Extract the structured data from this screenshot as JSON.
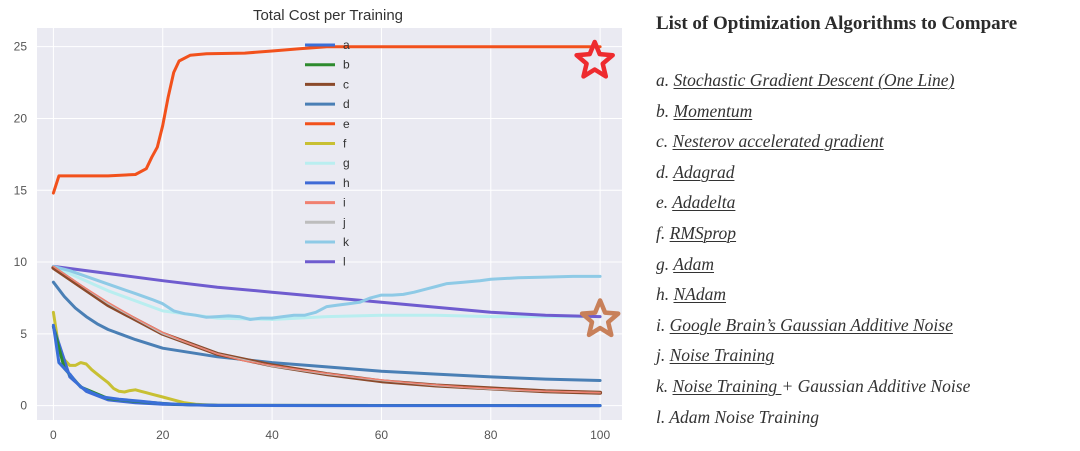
{
  "chart_data": {
    "type": "line",
    "title": "Total Cost per Training",
    "xlabel": "",
    "ylabel": "",
    "xlim": [
      -3,
      104
    ],
    "ylim": [
      -1,
      26.3
    ],
    "xticks": [
      0,
      20,
      40,
      60,
      80,
      100
    ],
    "yticks": [
      0,
      5,
      10,
      15,
      20,
      25
    ],
    "grid": true,
    "legend_position": "top-center",
    "series": [
      {
        "name": "a",
        "color": "#3a6fd8",
        "points": [
          [
            0,
            5.6
          ],
          [
            1,
            3.0
          ],
          [
            2,
            2.6
          ],
          [
            3,
            2.2
          ],
          [
            4,
            1.7
          ],
          [
            5,
            1.3
          ],
          [
            7,
            0.9
          ],
          [
            9,
            0.6
          ],
          [
            12,
            0.45
          ],
          [
            16,
            0.3
          ],
          [
            20,
            0.15
          ],
          [
            25,
            0.05
          ],
          [
            30,
            0.02
          ],
          [
            50,
            0.0
          ],
          [
            100,
            0.0
          ]
        ]
      },
      {
        "name": "b",
        "color": "#2e8b2e",
        "points": [
          [
            0,
            5.5
          ],
          [
            2,
            2.6
          ],
          [
            5,
            1.3
          ],
          [
            10,
            0.5
          ],
          [
            15,
            0.3
          ],
          [
            22,
            0.1
          ],
          [
            30,
            0.02
          ],
          [
            100,
            0.0
          ]
        ]
      },
      {
        "name": "c",
        "color": "#8b4a2b",
        "points": [
          [
            0,
            9.6
          ],
          [
            10,
            7.0
          ],
          [
            20,
            5.0
          ],
          [
            30,
            3.6
          ],
          [
            40,
            2.8
          ],
          [
            50,
            2.2
          ],
          [
            60,
            1.7
          ],
          [
            70,
            1.4
          ],
          [
            80,
            1.2
          ],
          [
            90,
            1.0
          ],
          [
            100,
            0.9
          ]
        ]
      },
      {
        "name": "d",
        "color": "#4a7fb5",
        "points": [
          [
            0,
            8.6
          ],
          [
            2,
            7.6
          ],
          [
            4,
            6.8
          ],
          [
            6,
            6.2
          ],
          [
            8,
            5.7
          ],
          [
            10,
            5.3
          ],
          [
            15,
            4.6
          ],
          [
            20,
            4.0
          ],
          [
            30,
            3.4
          ],
          [
            40,
            3.0
          ],
          [
            50,
            2.7
          ],
          [
            60,
            2.4
          ],
          [
            70,
            2.2
          ],
          [
            80,
            2.0
          ],
          [
            90,
            1.85
          ],
          [
            100,
            1.75
          ]
        ]
      },
      {
        "name": "e",
        "color": "#f2511c",
        "points": [
          [
            0,
            14.8
          ],
          [
            1,
            16.0
          ],
          [
            5,
            16.0
          ],
          [
            10,
            16.0
          ],
          [
            15,
            16.1
          ],
          [
            17,
            16.5
          ],
          [
            18,
            17.3
          ],
          [
            19,
            18.0
          ],
          [
            20,
            19.5
          ],
          [
            21,
            21.5
          ],
          [
            22,
            23.2
          ],
          [
            23,
            24.0
          ],
          [
            25,
            24.4
          ],
          [
            28,
            24.5
          ],
          [
            35,
            24.55
          ],
          [
            40,
            24.7
          ],
          [
            45,
            24.85
          ],
          [
            50,
            25.0
          ],
          [
            60,
            25.0
          ],
          [
            100,
            25.0
          ]
        ]
      },
      {
        "name": "f",
        "color": "#c8c033",
        "points": [
          [
            0,
            6.5
          ],
          [
            1,
            4.0
          ],
          [
            2,
            3.2
          ],
          [
            3,
            2.8
          ],
          [
            4,
            2.8
          ],
          [
            5,
            3.0
          ],
          [
            6,
            2.9
          ],
          [
            7,
            2.5
          ],
          [
            8,
            2.2
          ],
          [
            9,
            1.9
          ],
          [
            10,
            1.6
          ],
          [
            11,
            1.2
          ],
          [
            12,
            1.0
          ],
          [
            13,
            0.95
          ],
          [
            14,
            1.05
          ],
          [
            15,
            1.1
          ],
          [
            16,
            1.0
          ],
          [
            17,
            0.9
          ],
          [
            18,
            0.8
          ],
          [
            20,
            0.6
          ],
          [
            22,
            0.4
          ],
          [
            24,
            0.2
          ],
          [
            26,
            0.1
          ],
          [
            28,
            0.05
          ],
          [
            30,
            0.02
          ]
        ]
      },
      {
        "name": "g",
        "color": "#b9eef0",
        "points": [
          [
            0,
            9.7
          ],
          [
            10,
            8.0
          ],
          [
            20,
            6.6
          ],
          [
            30,
            6.1
          ],
          [
            40,
            6.0
          ],
          [
            50,
            6.2
          ],
          [
            60,
            6.3
          ],
          [
            70,
            6.3
          ],
          [
            80,
            6.2
          ],
          [
            90,
            6.2
          ],
          [
            100,
            6.2
          ]
        ]
      },
      {
        "name": "h",
        "color": "#3f6ad6",
        "points": [
          [
            0,
            5.5
          ],
          [
            3,
            2.0
          ],
          [
            6,
            1.0
          ],
          [
            10,
            0.4
          ],
          [
            15,
            0.2
          ],
          [
            20,
            0.1
          ],
          [
            30,
            0.02
          ],
          [
            100,
            0.0
          ]
        ]
      },
      {
        "name": "i",
        "color": "#f08070",
        "points": [
          [
            0,
            9.7
          ],
          [
            5,
            8.4
          ],
          [
            10,
            7.2
          ],
          [
            15,
            6.1
          ],
          [
            20,
            5.1
          ],
          [
            25,
            4.3
          ],
          [
            30,
            3.6
          ],
          [
            35,
            3.1
          ],
          [
            40,
            2.8
          ],
          [
            45,
            2.5
          ],
          [
            50,
            2.25
          ],
          [
            55,
            2.0
          ],
          [
            60,
            1.8
          ],
          [
            65,
            1.6
          ],
          [
            70,
            1.45
          ],
          [
            75,
            1.3
          ],
          [
            80,
            1.2
          ],
          [
            85,
            1.1
          ],
          [
            90,
            1.0
          ],
          [
            95,
            0.95
          ],
          [
            100,
            0.9
          ]
        ]
      },
      {
        "name": "j",
        "color": "#bdbdbd",
        "points": [
          [
            0,
            9.7
          ],
          [
            10,
            7.1
          ],
          [
            20,
            5.0
          ],
          [
            30,
            3.6
          ],
          [
            40,
            2.75
          ],
          [
            50,
            2.2
          ],
          [
            60,
            1.75
          ],
          [
            70,
            1.4
          ],
          [
            80,
            1.15
          ],
          [
            90,
            1.0
          ],
          [
            100,
            0.9
          ]
        ]
      },
      {
        "name": "k",
        "color": "#8ecae6",
        "points": [
          [
            0,
            9.7
          ],
          [
            3,
            9.4
          ],
          [
            6,
            9.0
          ],
          [
            9,
            8.6
          ],
          [
            12,
            8.2
          ],
          [
            15,
            7.8
          ],
          [
            18,
            7.4
          ],
          [
            20,
            7.1
          ],
          [
            22,
            6.6
          ],
          [
            24,
            6.4
          ],
          [
            26,
            6.3
          ],
          [
            28,
            6.15
          ],
          [
            30,
            6.2
          ],
          [
            32,
            6.25
          ],
          [
            34,
            6.2
          ],
          [
            36,
            6.0
          ],
          [
            38,
            6.1
          ],
          [
            40,
            6.1
          ],
          [
            42,
            6.2
          ],
          [
            44,
            6.3
          ],
          [
            46,
            6.3
          ],
          [
            48,
            6.5
          ],
          [
            50,
            6.9
          ],
          [
            52,
            7.0
          ],
          [
            54,
            7.1
          ],
          [
            56,
            7.2
          ],
          [
            58,
            7.5
          ],
          [
            60,
            7.7
          ],
          [
            62,
            7.7
          ],
          [
            64,
            7.75
          ],
          [
            66,
            7.9
          ],
          [
            68,
            8.1
          ],
          [
            70,
            8.3
          ],
          [
            72,
            8.5
          ],
          [
            75,
            8.6
          ],
          [
            78,
            8.7
          ],
          [
            80,
            8.8
          ],
          [
            85,
            8.9
          ],
          [
            90,
            8.95
          ],
          [
            95,
            9.0
          ],
          [
            100,
            9.0
          ]
        ]
      },
      {
        "name": "l",
        "color": "#6f5ccf",
        "points": [
          [
            0,
            9.7
          ],
          [
            10,
            9.2
          ],
          [
            20,
            8.7
          ],
          [
            30,
            8.25
          ],
          [
            40,
            7.9
          ],
          [
            50,
            7.55
          ],
          [
            60,
            7.2
          ],
          [
            70,
            6.85
          ],
          [
            80,
            6.5
          ],
          [
            90,
            6.3
          ],
          [
            100,
            6.2
          ]
        ]
      }
    ],
    "markers": [
      {
        "name": "red-star",
        "x": 99,
        "y": 24.0,
        "color": "#ee2b2f"
      },
      {
        "name": "brown-star",
        "x": 100,
        "y": 6.0,
        "color": "#c8805a"
      }
    ]
  },
  "panel": {
    "title": "List of Optimization Algorithms to Compare",
    "items": [
      {
        "prefix": "a. ",
        "link": "Stochastic Gradient Descent (One Line)",
        "suffix": ""
      },
      {
        "prefix": "b. ",
        "link": "Momentum",
        "suffix": ""
      },
      {
        "prefix": "c. ",
        "link": "Nesterov accelerated gradient",
        "suffix": ""
      },
      {
        "prefix": "d. ",
        "link": "Adagrad",
        "suffix": ""
      },
      {
        "prefix": "e. ",
        "link": "Adadelta",
        "suffix": ""
      },
      {
        "prefix": "f. ",
        "link": "RMSprop",
        "suffix": ""
      },
      {
        "prefix": "g. ",
        "link": "Adam",
        "suffix": ""
      },
      {
        "prefix": "h. ",
        "link": "NAdam",
        "suffix": ""
      },
      {
        "prefix": "i. ",
        "link": "Google Brain’s Gaussian Additive Noise",
        "suffix": ""
      },
      {
        "prefix": "j. ",
        "link": "Noise Training",
        "suffix": ""
      },
      {
        "prefix": "k. ",
        "link": "Noise Training ",
        "suffix": "+ Gaussian Additive Noise"
      },
      {
        "prefix": "l. Adam Noise Training",
        "link": "",
        "suffix": ""
      }
    ]
  }
}
